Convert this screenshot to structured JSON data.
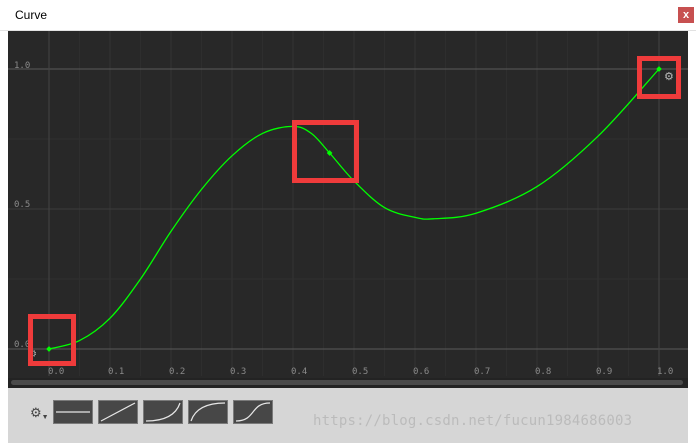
{
  "window": {
    "title": "Curve",
    "close_label": "x"
  },
  "axes": {
    "y_ticks": [
      "1.0",
      "0.5",
      "0.0"
    ],
    "x_ticks": [
      "0.0",
      "0.1",
      "0.2",
      "0.3",
      "0.4",
      "0.5",
      "0.6",
      "0.7",
      "0.8",
      "0.9",
      "1.0"
    ]
  },
  "curve": {
    "color": "#00ff00",
    "x_range": [
      0,
      1
    ],
    "y_range": [
      0,
      1
    ],
    "keyframes": [
      {
        "time": 0.0,
        "value": 0.0
      },
      {
        "time": 0.46,
        "value": 0.7
      },
      {
        "time": 1.0,
        "value": 1.0
      }
    ],
    "path_points": [
      {
        "x": 0.0,
        "y": 0.0
      },
      {
        "x": 0.05,
        "y": 0.03
      },
      {
        "x": 0.1,
        "y": 0.11
      },
      {
        "x": 0.15,
        "y": 0.25
      },
      {
        "x": 0.2,
        "y": 0.42
      },
      {
        "x": 0.25,
        "y": 0.57
      },
      {
        "x": 0.3,
        "y": 0.69
      },
      {
        "x": 0.35,
        "y": 0.77
      },
      {
        "x": 0.4,
        "y": 0.795
      },
      {
        "x": 0.43,
        "y": 0.77
      },
      {
        "x": 0.46,
        "y": 0.7
      },
      {
        "x": 0.5,
        "y": 0.6
      },
      {
        "x": 0.55,
        "y": 0.505
      },
      {
        "x": 0.6,
        "y": 0.47
      },
      {
        "x": 0.63,
        "y": 0.465
      },
      {
        "x": 0.7,
        "y": 0.485
      },
      {
        "x": 0.8,
        "y": 0.58
      },
      {
        "x": 0.9,
        "y": 0.76
      },
      {
        "x": 1.0,
        "y": 1.0
      }
    ]
  },
  "highlights_color": "#ef3b3b",
  "toolbar": {
    "settings_icon": "gear-dropdown-icon",
    "presets": [
      "preset-flat",
      "preset-linear",
      "preset-ease-in",
      "preset-ease-out",
      "preset-ease-in-out"
    ]
  },
  "watermark": "https://blog.csdn.net/fucun1984686003"
}
